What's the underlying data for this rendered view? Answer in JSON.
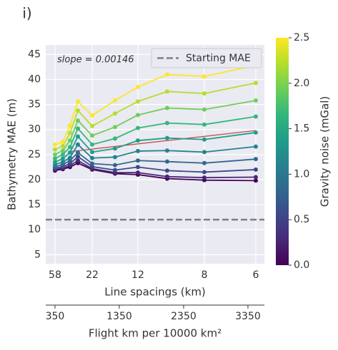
{
  "chart_data": {
    "type": "line",
    "panel_label": "i)",
    "ylabel": "Bathymetry MAE (m)",
    "xlabel": "Line spacings (km)",
    "x2label": "Flight km per 10000 km²",
    "annotation": "slope = 0.00146",
    "x": [
      350,
      472,
      583,
      706,
      928,
      1283,
      1639,
      2094,
      2672,
      3472
    ],
    "xlim": [
      206,
      3606
    ],
    "xticks": [
      {
        "value": 350,
        "label": "58"
      },
      {
        "value": 928,
        "label": "22"
      },
      {
        "value": 1639,
        "label": "12"
      },
      {
        "value": 2672,
        "label": "8"
      },
      {
        "value": 3472,
        "label": "6"
      }
    ],
    "x2ticks": [
      350,
      1350,
      2350,
      3350
    ],
    "ylim": [
      3.2,
      46.9
    ],
    "yticks": [
      5,
      10,
      15,
      20,
      25,
      30,
      35,
      40,
      45
    ],
    "grid": true,
    "series": [
      {
        "color": "#440154",
        "values": [
          21.8,
          22.1,
          22.5,
          23.3,
          22.0,
          21.2,
          21.0,
          20.2,
          19.9,
          19.8
        ]
      },
      {
        "color": "#482878",
        "values": [
          22.0,
          22.3,
          22.8,
          23.8,
          22.2,
          21.4,
          21.4,
          20.6,
          20.4,
          20.5
        ]
      },
      {
        "color": "#3e4989",
        "values": [
          22.3,
          22.6,
          23.2,
          24.6,
          22.6,
          21.9,
          22.5,
          21.8,
          21.5,
          22.0
        ]
      },
      {
        "color": "#31688e",
        "values": [
          22.6,
          23.0,
          23.8,
          25.4,
          23.2,
          22.9,
          23.8,
          23.6,
          23.3,
          24.1
        ]
      },
      {
        "color": "#26828e",
        "values": [
          23.0,
          23.5,
          24.4,
          27.0,
          24.3,
          24.5,
          25.7,
          25.8,
          25.5,
          26.6
        ]
      },
      {
        "color": "#1f9e89",
        "values": [
          23.5,
          24.2,
          25.4,
          28.6,
          25.5,
          26.2,
          27.8,
          28.3,
          28.0,
          29.4
        ]
      },
      {
        "color": "#35b779",
        "values": [
          24.2,
          25.0,
          26.5,
          30.2,
          27.0,
          28.2,
          30.3,
          31.3,
          31.0,
          32.6
        ]
      },
      {
        "color": "#6ece58",
        "values": [
          25.0,
          25.8,
          27.8,
          31.8,
          28.8,
          30.5,
          32.9,
          34.3,
          34.0,
          35.8
        ]
      },
      {
        "color": "#b5de2b",
        "values": [
          26.0,
          26.7,
          29.3,
          33.8,
          30.7,
          33.2,
          35.6,
          37.6,
          37.2,
          39.3
        ]
      },
      {
        "color": "#fde725",
        "values": [
          27.0,
          27.5,
          30.8,
          35.6,
          32.8,
          35.8,
          38.5,
          41.0,
          40.6,
          42.8
        ]
      }
    ],
    "trend": {
      "x": [
        583,
        3472
      ],
      "values": [
        25.6,
        29.8
      ],
      "color": "#c44e52"
    },
    "hline": {
      "value": 12,
      "label": "Starting MAE",
      "color": "#808080"
    },
    "legend": "upper right",
    "colorbar": {
      "label": "Gravity noise (mGal)",
      "lim": [
        0,
        2.5
      ],
      "ticks": [
        {
          "value": 0,
          "label": "0.0"
        },
        {
          "value": 0.5,
          "label": "0.5"
        },
        {
          "value": 1,
          "label": "1.0"
        },
        {
          "value": 1.5,
          "label": "1.5"
        },
        {
          "value": 2,
          "label": "2.0"
        },
        {
          "value": 2.5,
          "label": "2.5"
        }
      ],
      "colors": [
        "#440154",
        "#482878",
        "#3e4989",
        "#31688e",
        "#26828e",
        "#1f9e89",
        "#35b779",
        "#6ece58",
        "#b5de2b",
        "#fde725"
      ]
    }
  }
}
